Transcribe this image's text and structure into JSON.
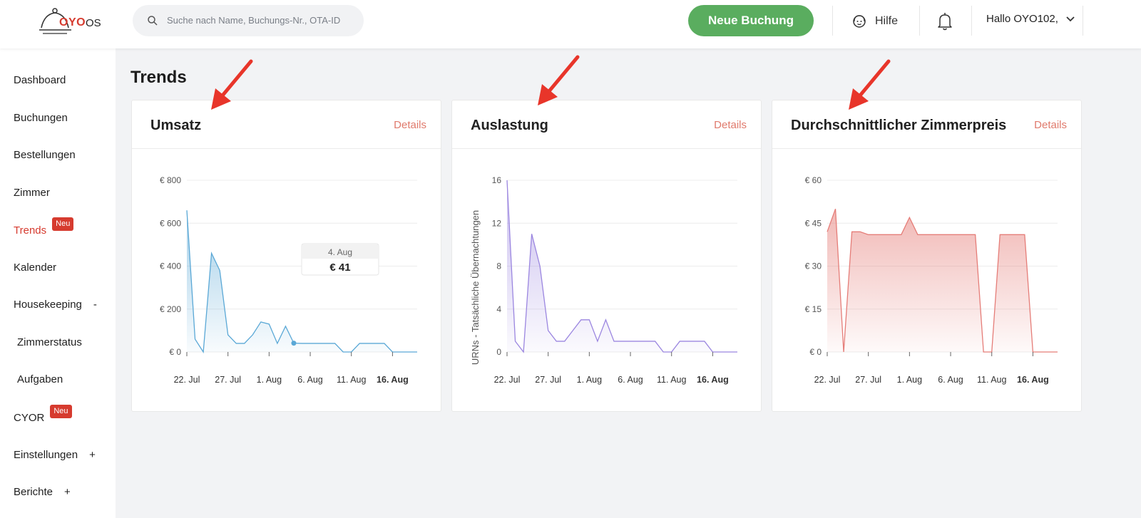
{
  "header": {
    "logo_text": "OYO",
    "logo_suffix": "OS",
    "search_placeholder": "Suche nach Name, Buchungs-Nr., OTA-ID",
    "new_booking": "Neue Buchung",
    "help": "Hilfe",
    "user_greeting": "Hallo OYO102,"
  },
  "sidebar": {
    "items": [
      {
        "label": "Dashboard"
      },
      {
        "label": "Buchungen"
      },
      {
        "label": "Bestellungen"
      },
      {
        "label": "Zimmer"
      },
      {
        "label": "Trends",
        "badge": "Neu",
        "active": true
      },
      {
        "label": "Kalender"
      },
      {
        "label": "Housekeeping",
        "suffix": "-"
      },
      {
        "label": "Zimmerstatus"
      },
      {
        "label": "Aufgaben"
      },
      {
        "label": "CYOR",
        "badge": "Neu"
      },
      {
        "label": "Einstellungen",
        "suffix": "+"
      },
      {
        "label": "Berichte",
        "suffix": "+"
      }
    ]
  },
  "main": {
    "title": "Trends",
    "details_label": "Details"
  },
  "chart_data": [
    {
      "type": "area",
      "title": "Umsatz",
      "ylabel": "",
      "y_ticks": [
        "€ 0",
        "€ 200",
        "€ 400",
        "€ 600",
        "€ 800"
      ],
      "ylim": [
        0,
        800
      ],
      "x_ticks": [
        "22. Jul",
        "27. Jul",
        "1. Aug",
        "6. Aug",
        "11. Aug",
        "16. Aug"
      ],
      "tooltip": {
        "date": "4. Aug",
        "value": "€ 41"
      },
      "color": "#5aa8d6",
      "series": [
        {
          "x": [
            "22. Jul",
            "23. Jul",
            "24. Jul",
            "25. Jul",
            "26. Jul",
            "27. Jul",
            "28. Jul",
            "29. Jul",
            "30. Jul",
            "31. Jul",
            "1. Aug",
            "2. Aug",
            "3. Aug",
            "4. Aug",
            "5. Aug",
            "6. Aug",
            "7. Aug",
            "8. Aug",
            "9. Aug",
            "10. Aug",
            "11. Aug",
            "12. Aug",
            "13. Aug",
            "14. Aug",
            "15. Aug",
            "16. Aug",
            "17. Aug",
            "18. Aug",
            "19. Aug"
          ],
          "values": [
            660,
            60,
            0,
            460,
            380,
            80,
            40,
            40,
            80,
            140,
            130,
            40,
            120,
            41,
            40,
            40,
            40,
            40,
            40,
            0,
            0,
            40,
            40,
            40,
            40,
            0,
            0,
            0,
            0
          ]
        }
      ]
    },
    {
      "type": "area",
      "title": "Auslastung",
      "ylabel": "URNs - Tatsächliche Übernachtungen",
      "y_ticks": [
        "0",
        "4",
        "8",
        "12",
        "16"
      ],
      "ylim": [
        0,
        16
      ],
      "x_ticks": [
        "22. Jul",
        "27. Jul",
        "1. Aug",
        "6. Aug",
        "11. Aug",
        "16. Aug"
      ],
      "color": "#9b86e0",
      "series": [
        {
          "x": [
            "22. Jul",
            "23. Jul",
            "24. Jul",
            "25. Jul",
            "26. Jul",
            "27. Jul",
            "28. Jul",
            "29. Jul",
            "30. Jul",
            "31. Jul",
            "1. Aug",
            "2. Aug",
            "3. Aug",
            "4. Aug",
            "5. Aug",
            "6. Aug",
            "7. Aug",
            "8. Aug",
            "9. Aug",
            "10. Aug",
            "11. Aug",
            "12. Aug",
            "13. Aug",
            "14. Aug",
            "15. Aug",
            "16. Aug",
            "17. Aug",
            "18. Aug",
            "19. Aug"
          ],
          "values": [
            16,
            1,
            0,
            11,
            8,
            2,
            1,
            1,
            2,
            3,
            3,
            1,
            3,
            1,
            1,
            1,
            1,
            1,
            1,
            0,
            0,
            1,
            1,
            1,
            1,
            0,
            0,
            0,
            0
          ]
        }
      ]
    },
    {
      "type": "area",
      "title": "Durchschnittlicher Zimmerpreis",
      "ylabel": "",
      "y_ticks": [
        "€ 0",
        "€ 15",
        "€ 30",
        "€ 45",
        "€ 60"
      ],
      "ylim": [
        0,
        60
      ],
      "x_ticks": [
        "22. Jul",
        "27. Jul",
        "1. Aug",
        "6. Aug",
        "11. Aug",
        "16. Aug"
      ],
      "color": "#e57d78",
      "series": [
        {
          "x": [
            "22. Jul",
            "23. Jul",
            "24. Jul",
            "25. Jul",
            "26. Jul",
            "27. Jul",
            "28. Jul",
            "29. Jul",
            "30. Jul",
            "31. Jul",
            "1. Aug",
            "2. Aug",
            "3. Aug",
            "4. Aug",
            "5. Aug",
            "6. Aug",
            "7. Aug",
            "8. Aug",
            "9. Aug",
            "10. Aug",
            "11. Aug",
            "12. Aug",
            "13. Aug",
            "14. Aug",
            "15. Aug",
            "16. Aug",
            "17. Aug",
            "18. Aug",
            "19. Aug"
          ],
          "values": [
            42,
            50,
            0,
            42,
            42,
            41,
            41,
            41,
            41,
            41,
            47,
            41,
            41,
            41,
            41,
            41,
            41,
            41,
            41,
            0,
            0,
            41,
            41,
            41,
            41,
            0,
            0,
            0,
            0
          ]
        }
      ]
    }
  ]
}
